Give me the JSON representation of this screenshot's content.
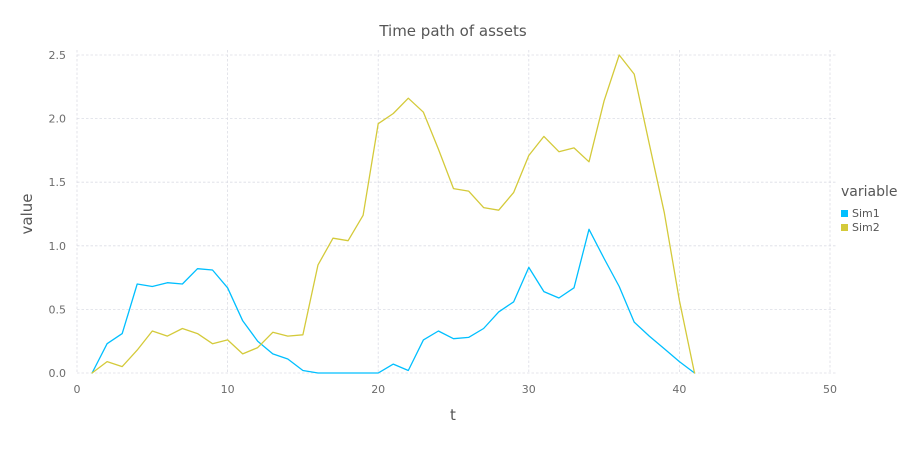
{
  "chart_data": {
    "type": "line",
    "title": "Time path of assets",
    "xlabel": "t",
    "ylabel": "value",
    "xlim": [
      0,
      50
    ],
    "ylim": [
      0,
      2.5
    ],
    "xticks": [
      0,
      10,
      20,
      30,
      40,
      50
    ],
    "yticks": [
      0.0,
      0.5,
      1.0,
      1.5,
      2.0,
      2.5
    ],
    "xtick_labels": [
      "0",
      "10",
      "20",
      "30",
      "40",
      "50"
    ],
    "ytick_labels": [
      "0.0",
      "0.5",
      "1.0",
      "1.5",
      "2.0",
      "2.5"
    ],
    "grid": true,
    "legend": {
      "title": "variable",
      "placement": "right"
    },
    "x": [
      1,
      2,
      3,
      4,
      5,
      6,
      7,
      8,
      9,
      10,
      11,
      12,
      13,
      14,
      15,
      16,
      17,
      18,
      19,
      20,
      21,
      22,
      23,
      24,
      25,
      26,
      27,
      28,
      29,
      30,
      31,
      32,
      33,
      34,
      35,
      36,
      37,
      38,
      39,
      40,
      41
    ],
    "series": [
      {
        "name": "Sim1",
        "color": "#00bfff",
        "values": [
          0.0,
          0.23,
          0.31,
          0.7,
          0.68,
          0.71,
          0.7,
          0.82,
          0.81,
          0.67,
          0.41,
          0.25,
          0.15,
          0.11,
          0.02,
          0.0,
          0.0,
          0.0,
          0.0,
          0.0,
          0.07,
          0.02,
          0.26,
          0.33,
          0.27,
          0.28,
          0.35,
          0.48,
          0.56,
          0.83,
          0.64,
          0.59,
          0.67,
          1.13,
          0.9,
          0.68,
          0.4,
          0.29,
          0.19,
          0.09,
          0.0
        ]
      },
      {
        "name": "Sim2",
        "color": "#d4ca3a",
        "values": [
          0.0,
          0.09,
          0.05,
          0.18,
          0.33,
          0.29,
          0.35,
          0.31,
          0.23,
          0.26,
          0.15,
          0.2,
          0.32,
          0.29,
          0.3,
          0.85,
          1.06,
          1.04,
          1.24,
          1.96,
          2.04,
          2.16,
          2.05,
          1.76,
          1.45,
          1.43,
          1.3,
          1.28,
          1.42,
          1.71,
          1.86,
          1.74,
          1.77,
          1.66,
          2.14,
          2.5,
          2.35,
          1.8,
          1.26,
          0.57,
          0.0
        ]
      }
    ]
  }
}
